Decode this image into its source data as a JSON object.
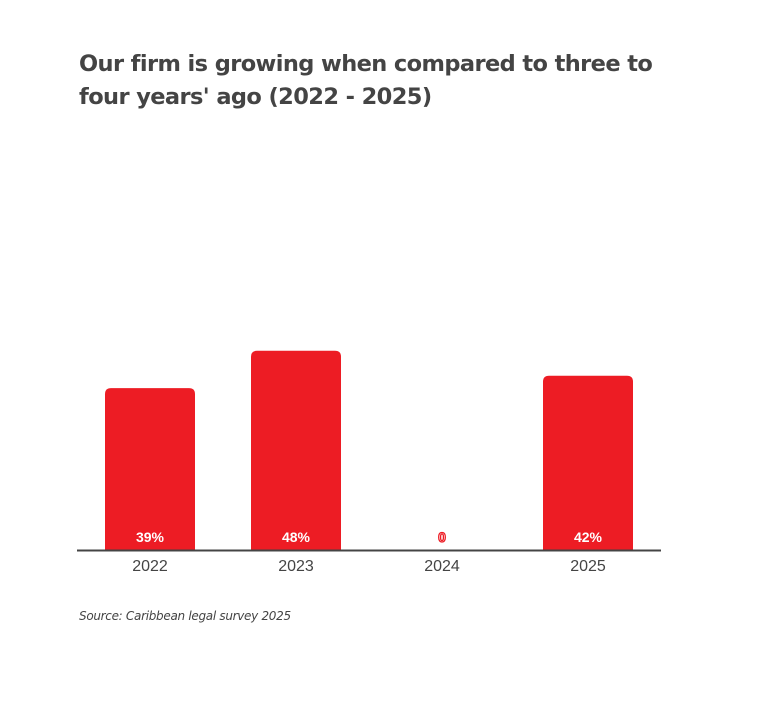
{
  "chart_data": {
    "type": "bar",
    "title": "Our firm is growing when compared to three to four years' ago (2022 - 2025)",
    "categories": [
      "2022",
      "2023",
      "2024",
      "2025"
    ],
    "values": [
      39,
      48,
      0,
      42
    ],
    "data_labels": [
      "39%",
      "48%",
      "0",
      "42%"
    ],
    "xlabel": "",
    "ylabel": "",
    "ylim": [
      0,
      100
    ],
    "grid": false,
    "bar_color": "#ED1C24",
    "source": "Source: Caribbean legal survey 2025"
  }
}
